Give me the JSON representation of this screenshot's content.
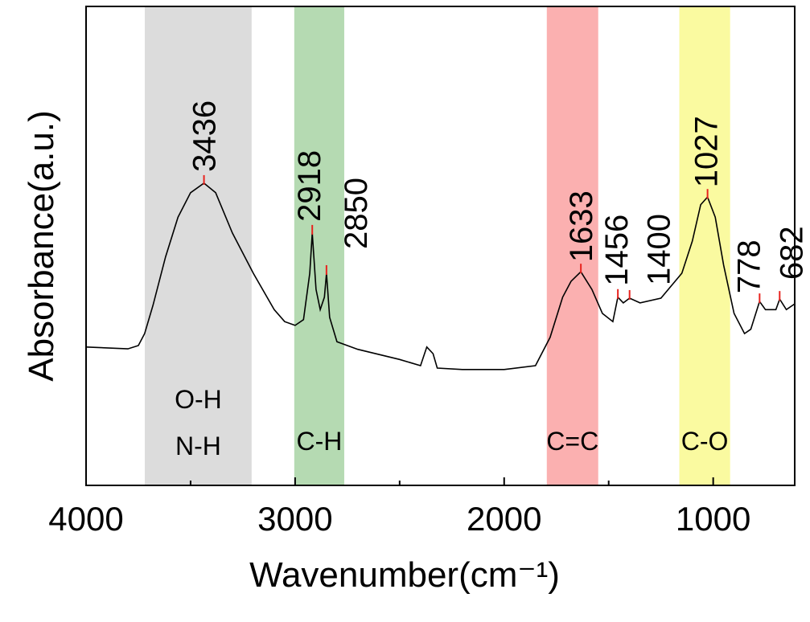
{
  "chart_data": {
    "type": "line",
    "xlabel": "Wavenumber(cm⁻¹)",
    "ylabel": "Absorbance(a.u.)",
    "xlim": [
      4000,
      610
    ],
    "ylim": [
      0,
      100
    ],
    "xticks": [
      4000,
      3000,
      2000,
      1000
    ],
    "xminor": [
      3500,
      2500,
      1500
    ],
    "series": [
      {
        "color": "#000000",
        "x": [
          4000,
          3800,
          3750,
          3720,
          3680,
          3620,
          3560,
          3500,
          3436,
          3380,
          3300,
          3200,
          3100,
          3050,
          3000,
          2960,
          2930,
          2918,
          2900,
          2880,
          2860,
          2850,
          2835,
          2800,
          2700,
          2500,
          2400,
          2370,
          2340,
          2320,
          2200,
          2000,
          1850,
          1780,
          1720,
          1680,
          1633,
          1580,
          1530,
          1480,
          1456,
          1430,
          1400,
          1350,
          1250,
          1150,
          1100,
          1060,
          1027,
          990,
          950,
          900,
          850,
          820,
          778,
          750,
          700,
          682,
          650,
          610
        ],
        "values": [
          28.9,
          28.5,
          29.2,
          31.7,
          37.6,
          47.7,
          56.0,
          61.1,
          63.1,
          61.1,
          52.7,
          44.3,
          36.7,
          34.2,
          33.4,
          34.6,
          44.3,
          52.7,
          40.9,
          36.7,
          39.3,
          44.3,
          35.1,
          30.0,
          28.4,
          26.3,
          25.0,
          28.9,
          27.5,
          24.5,
          24.2,
          24.2,
          25.0,
          30.9,
          39.3,
          42.6,
          44.6,
          40.9,
          35.9,
          34.2,
          39.3,
          38.1,
          39.1,
          38.1,
          39.1,
          44.3,
          51.0,
          58.6,
          60.2,
          56.0,
          46.0,
          35.9,
          31.7,
          32.6,
          38.4,
          36.7,
          36.7,
          38.9,
          36.7,
          37.9
        ]
      }
    ],
    "bands": [
      {
        "from": 3719,
        "to": 3208,
        "color": "#dcdcdc",
        "label": [
          "O-H",
          "N-H"
        ]
      },
      {
        "from": 3004,
        "to": 2765,
        "color": "#b5dab2",
        "label": [
          "C-H"
        ]
      },
      {
        "from": 1796,
        "to": 1550,
        "color": "#fbb0b0",
        "label": [
          "C=C"
        ]
      },
      {
        "from": 1162,
        "to": 919,
        "color": "#fafaa0",
        "label": [
          "C-O"
        ]
      }
    ],
    "peaks": [
      {
        "x": 3436,
        "color": "#777777"
      },
      {
        "x": 2918,
        "color": "#000000"
      },
      {
        "x": 2850,
        "color": "#000000"
      },
      {
        "x": 1633,
        "color": "#8b1a1a"
      },
      {
        "x": 1456,
        "color": "#000000"
      },
      {
        "x": 1400,
        "color": "#000000"
      },
      {
        "x": 1027,
        "color": "#5a5a00"
      },
      {
        "x": 778,
        "color": "#000000"
      },
      {
        "x": 682,
        "color": "#000000"
      }
    ],
    "peak_mark_color": "#e8231e"
  }
}
